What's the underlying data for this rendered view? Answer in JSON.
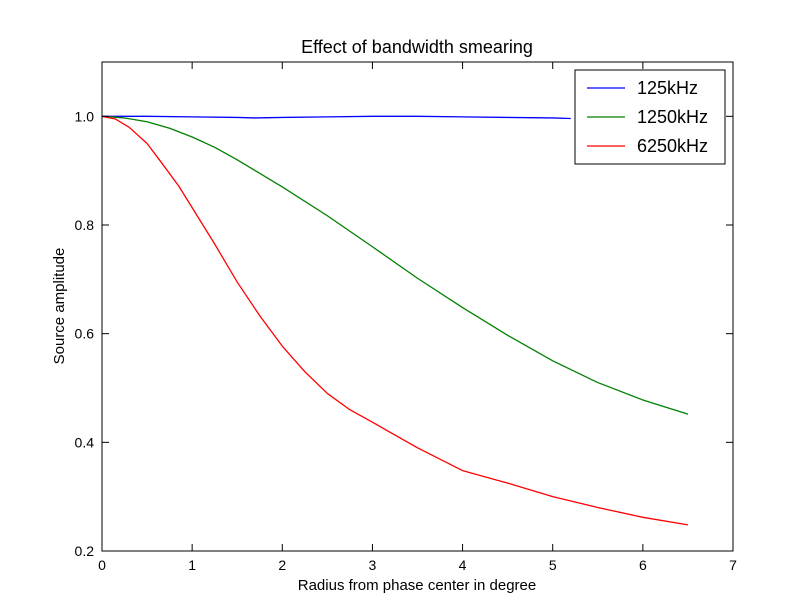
{
  "chart_data": {
    "type": "line",
    "title": "Effect of bandwidth smearing",
    "xlabel": "Radius from phase center in degree",
    "ylabel": "Source amplitude",
    "xlim": [
      0,
      7
    ],
    "ylim": [
      0.2,
      1.1
    ],
    "xticks": [
      0,
      1,
      2,
      3,
      4,
      5,
      6,
      7
    ],
    "yticks": [
      0.2,
      0.4,
      0.6,
      0.8,
      1.0
    ],
    "xtick_labels": [
      "0",
      "1",
      "2",
      "3",
      "4",
      "5",
      "6",
      "7"
    ],
    "ytick_labels": [
      "0.2",
      "0.4",
      "0.6",
      "0.8",
      "1.0"
    ],
    "grid": false,
    "legend_position": "top-right",
    "series": [
      {
        "name": "125kHz",
        "color": "#0000ff",
        "x": [
          0,
          0.5,
          1.0,
          1.5,
          1.7,
          2.0,
          2.5,
          3.0,
          3.5,
          4.0,
          4.5,
          5.0,
          5.2
        ],
        "y": [
          1.0,
          1.0,
          0.999,
          0.998,
          0.997,
          0.998,
          0.999,
          1.0,
          1.0,
          0.999,
          0.998,
          0.997,
          0.996
        ]
      },
      {
        "name": "1250kHz",
        "color": "#008000",
        "x": [
          0,
          0.25,
          0.5,
          0.75,
          1.0,
          1.25,
          1.5,
          2.0,
          2.5,
          3.0,
          3.5,
          4.0,
          4.5,
          5.0,
          5.5,
          6.0,
          6.5
        ],
        "y": [
          1.0,
          0.997,
          0.99,
          0.978,
          0.962,
          0.943,
          0.92,
          0.87,
          0.817,
          0.76,
          0.702,
          0.648,
          0.597,
          0.55,
          0.51,
          0.478,
          0.452
        ]
      },
      {
        "name": "6250kHz",
        "color": "#ff0000",
        "x": [
          0,
          0.15,
          0.3,
          0.5,
          0.65,
          0.85,
          1.0,
          1.25,
          1.5,
          1.75,
          2.0,
          2.25,
          2.5,
          2.75,
          3.0,
          3.5,
          4.0,
          4.5,
          5.0,
          5.5,
          6.0,
          6.5
        ],
        "y": [
          1.0,
          0.995,
          0.98,
          0.95,
          0.917,
          0.872,
          0.832,
          0.765,
          0.695,
          0.633,
          0.577,
          0.53,
          0.49,
          0.46,
          0.437,
          0.39,
          0.348,
          0.325,
          0.3,
          0.28,
          0.262,
          0.248
        ]
      }
    ]
  }
}
